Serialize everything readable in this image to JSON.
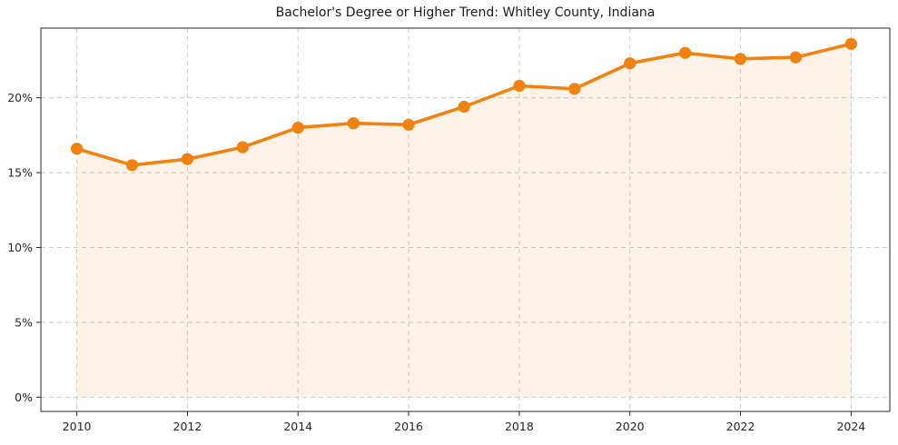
{
  "chart": {
    "title": "Bachelor's Degree or Higher Trend: Whitley County, Indiana"
  },
  "chart_data": {
    "type": "line",
    "title": "Bachelor's Degree or Higher Trend: Whitley County, Indiana",
    "x": [
      2010,
      2011,
      2012,
      2013,
      2014,
      2015,
      2016,
      2017,
      2018,
      2019,
      2020,
      2021,
      2022,
      2023,
      2024
    ],
    "values": [
      16.6,
      15.5,
      15.9,
      16.7,
      18.0,
      18.3,
      18.2,
      19.4,
      20.8,
      20.6,
      22.3,
      23.0,
      22.6,
      22.7,
      23.6
    ],
    "xlabel": "",
    "ylabel": "",
    "xticks": [
      2010,
      2012,
      2014,
      2016,
      2018,
      2020,
      2022,
      2024
    ],
    "xtick_labels": [
      "2010",
      "2012",
      "2014",
      "2016",
      "2018",
      "2020",
      "2022",
      "2024"
    ],
    "yticks": [
      0,
      5,
      10,
      15,
      20
    ],
    "ytick_labels": [
      "0%",
      "5%",
      "10%",
      "15%",
      "20%"
    ],
    "xlim": [
      2009.35,
      2024.7
    ],
    "ylim": [
      -0.95,
      24.65
    ],
    "grid": true,
    "grid_style": "dashed",
    "legend": false,
    "marker": "circle",
    "colors": {
      "line": "#f0820f",
      "fill": "rgba(240,130,15,0.10)",
      "grid": "#cccccc",
      "axis": "#262626",
      "text": "#262626",
      "title": "#1a1a1a"
    }
  }
}
